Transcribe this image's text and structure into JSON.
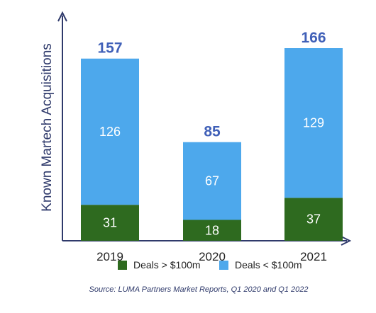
{
  "chart_data": {
    "type": "bar",
    "stacked": true,
    "categories": [
      "2019",
      "2020",
      "2021"
    ],
    "series": [
      {
        "name": "Deals > $100m",
        "values": [
          31,
          18,
          37
        ],
        "color": "#2e6a1f"
      },
      {
        "name": "Deals < $100m",
        "values": [
          126,
          67,
          129
        ],
        "color": "#4da8ec"
      }
    ],
    "totals": [
      "157",
      "85",
      "166"
    ],
    "total_color": "#4060b8",
    "xlabel": "",
    "ylabel": "Known Martech Acquisitions",
    "ylim": [
      0,
      166
    ],
    "legend_position": "bottom",
    "grid": false,
    "axis_color": "#2f3a6b",
    "source": "Source: LUMA Partners Market Reports, Q1 2020 and Q1 2022",
    "source_color": "#2f3a6b"
  }
}
